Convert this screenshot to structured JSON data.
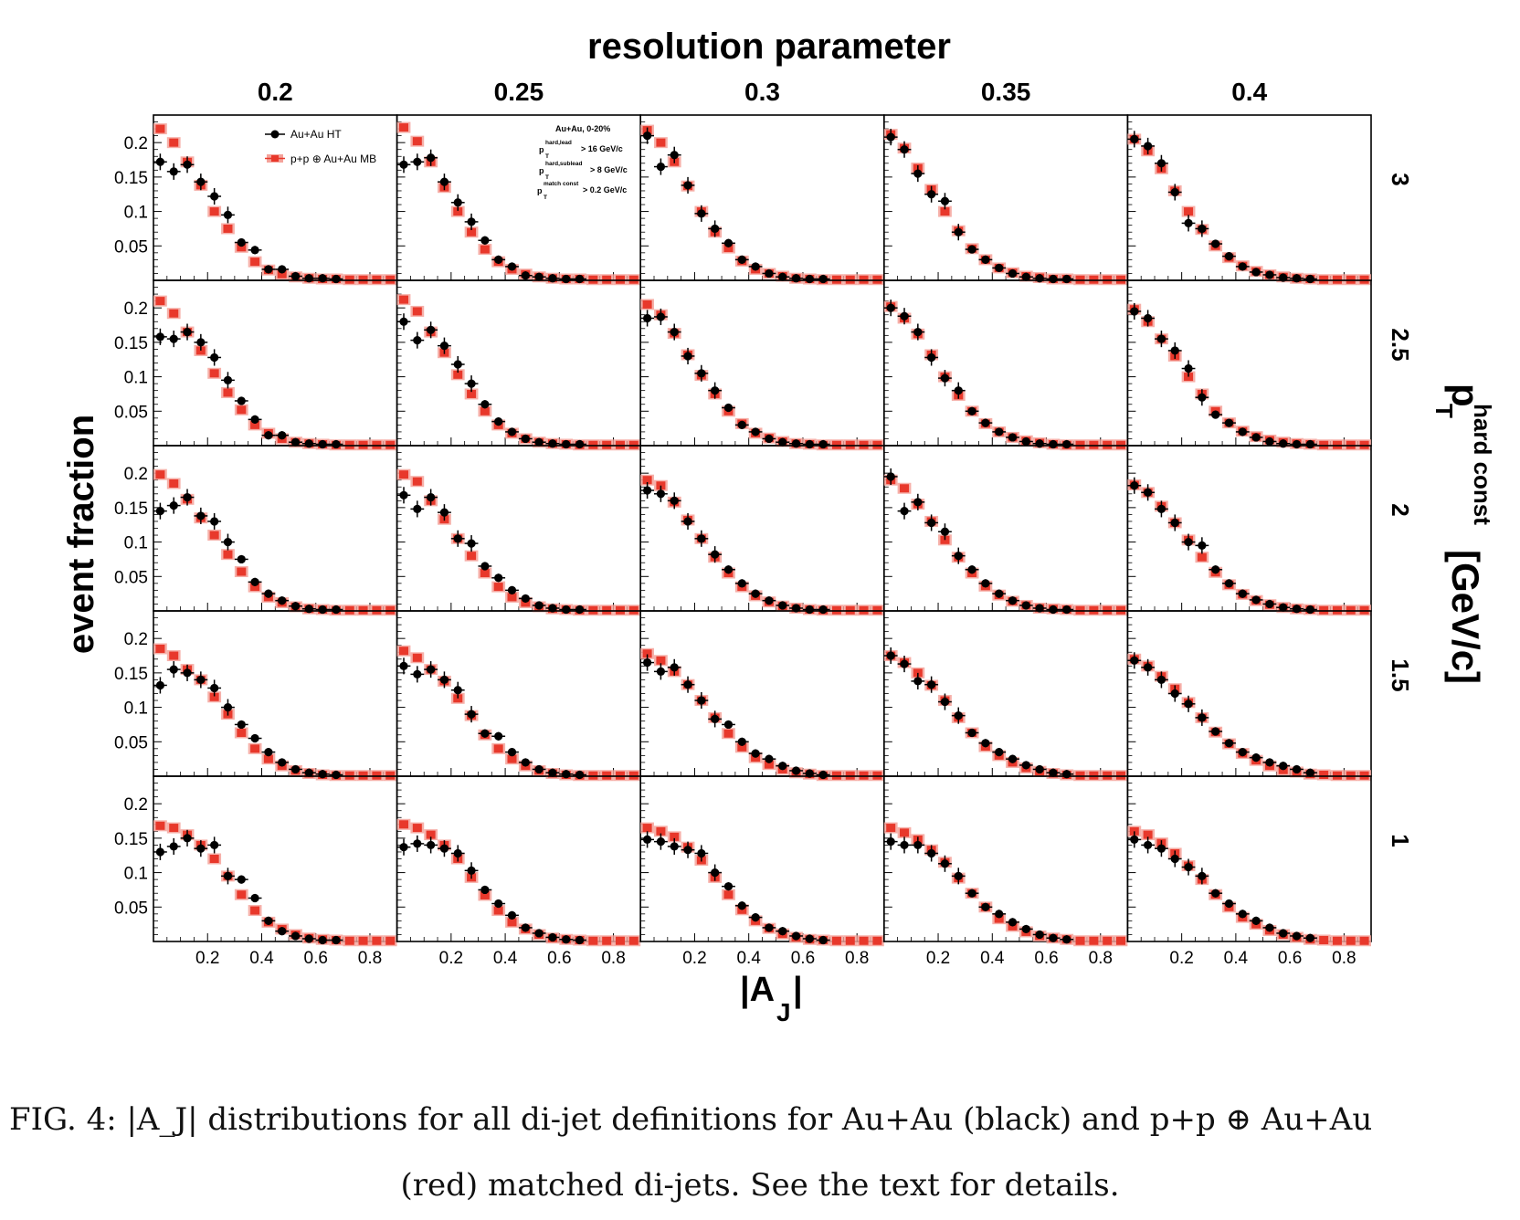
{
  "figure": {
    "top_title": "resolution parameter",
    "y_title": "event fraction",
    "x_title_main": "|A",
    "x_title_sub": "J",
    "x_title_tail": "|",
    "right_title_main": "p",
    "right_title_sup": "hard const",
    "right_title_sub": "T",
    "right_title_unit": "[GeV/c]",
    "column_labels": [
      "0.2",
      "0.25",
      "0.3",
      "0.35",
      "0.4"
    ],
    "row_labels": [
      "3",
      "2.5",
      "2",
      "1.5",
      "1"
    ],
    "legend": {
      "auau_label": "Au+Au HT",
      "pp_label": "p+p ⊕ Au+Au MB"
    },
    "cuts": {
      "line1": "Au+Au, 0-20%",
      "line2_main": "p",
      "line2_sup": "hard,lead",
      "line2_sub": "T",
      "line2_val": "> 16 GeV/c",
      "line3_main": "p",
      "line3_sup": "hard,sublead",
      "line3_sub": "T",
      "line3_val": "> 8 GeV/c",
      "line4_main": "p",
      "line4_sup": "match const",
      "line4_sub": "T",
      "line4_val": "> 0.2 GeV/c"
    },
    "y_ticks": [
      "0.2",
      "0.15",
      "0.1",
      "0.05"
    ],
    "x_ticks": [
      "0.2",
      "0.4",
      "0.6",
      "0.8"
    ],
    "colors": {
      "auau": "#000000",
      "pp": "#e8382b",
      "pp_band": "#f4a29a"
    }
  },
  "caption": {
    "line1": "FIG. 4: |A_J| distributions for all di-jet definitions for Au+Au (black) and p+p ⊕ Au+Au",
    "line2": "(red) matched di-jets. See the text for details."
  },
  "chart_data": {
    "type": "scatter",
    "x_label": "|AJ|",
    "y_label": "event fraction",
    "xlim": [
      0,
      0.9
    ],
    "ylim": [
      0,
      0.24
    ],
    "x": [
      0.025,
      0.075,
      0.125,
      0.175,
      0.225,
      0.275,
      0.325,
      0.375,
      0.425,
      0.475,
      0.525,
      0.575,
      0.625,
      0.675,
      0.725,
      0.775,
      0.825,
      0.875
    ],
    "column_parameter": "resolution parameter",
    "row_parameter": "pT hard const [GeV/c]",
    "panels": [
      {
        "R": "0.2",
        "pt": "3",
        "auau": [
          0.172,
          0.158,
          0.168,
          0.143,
          0.122,
          0.095,
          0.055,
          0.044,
          0.016,
          0.016,
          0.006,
          0.003,
          0.003,
          0.002
        ],
        "pp": [
          0.22,
          0.2,
          0.172,
          0.138,
          0.1,
          0.075,
          0.048,
          0.027,
          0.015,
          0.009,
          0.005,
          0.003,
          0.002,
          0.002,
          0.001,
          0.001,
          0.001,
          0.001
        ]
      },
      {
        "R": "0.25",
        "pt": "3",
        "auau": [
          0.168,
          0.172,
          0.178,
          0.143,
          0.113,
          0.085,
          0.058,
          0.03,
          0.02,
          0.007,
          0.005,
          0.003,
          0.002,
          0.002
        ],
        "pp": [
          0.222,
          0.202,
          0.172,
          0.135,
          0.1,
          0.07,
          0.045,
          0.027,
          0.016,
          0.009,
          0.005,
          0.003,
          0.002,
          0.002,
          0.001,
          0.001,
          0.001,
          0.001
        ]
      },
      {
        "R": "0.3",
        "pt": "3",
        "auau": [
          0.21,
          0.165,
          0.182,
          0.138,
          0.097,
          0.075,
          0.054,
          0.03,
          0.02,
          0.01,
          0.005,
          0.003,
          0.002,
          0.002
        ],
        "pp": [
          0.218,
          0.2,
          0.172,
          0.137,
          0.1,
          0.07,
          0.047,
          0.028,
          0.016,
          0.01,
          0.006,
          0.003,
          0.002,
          0.001,
          0.001,
          0.001,
          0.001,
          0.001
        ]
      },
      {
        "R": "0.35",
        "pt": "3",
        "auau": [
          0.208,
          0.19,
          0.155,
          0.125,
          0.115,
          0.07,
          0.045,
          0.03,
          0.018,
          0.01,
          0.005,
          0.003,
          0.002,
          0.002
        ],
        "pp": [
          0.212,
          0.192,
          0.163,
          0.132,
          0.1,
          0.072,
          0.046,
          0.03,
          0.018,
          0.011,
          0.006,
          0.004,
          0.002,
          0.002,
          0.001,
          0.001,
          0.001,
          0.001
        ]
      },
      {
        "R": "0.4",
        "pt": "3",
        "auau": [
          0.205,
          0.195,
          0.17,
          0.128,
          0.083,
          0.075,
          0.053,
          0.035,
          0.02,
          0.012,
          0.008,
          0.004,
          0.003,
          0.002
        ],
        "pp": [
          0.205,
          0.188,
          0.162,
          0.13,
          0.1,
          0.074,
          0.05,
          0.033,
          0.021,
          0.013,
          0.008,
          0.005,
          0.003,
          0.002,
          0.001,
          0.001,
          0.001,
          0.001
        ]
      },
      {
        "R": "0.2",
        "pt": "2.5",
        "auau": [
          0.158,
          0.155,
          0.165,
          0.15,
          0.128,
          0.095,
          0.065,
          0.038,
          0.015,
          0.015,
          0.005,
          0.003,
          0.002,
          0.002
        ],
        "pp": [
          0.21,
          0.192,
          0.165,
          0.138,
          0.105,
          0.077,
          0.052,
          0.03,
          0.018,
          0.01,
          0.005,
          0.003,
          0.002,
          0.001,
          0.001,
          0.001,
          0.001,
          0.001
        ]
      },
      {
        "R": "0.25",
        "pt": "2.5",
        "auau": [
          0.18,
          0.153,
          0.168,
          0.145,
          0.118,
          0.09,
          0.06,
          0.035,
          0.02,
          0.01,
          0.005,
          0.003,
          0.002,
          0.002
        ],
        "pp": [
          0.212,
          0.195,
          0.165,
          0.135,
          0.103,
          0.075,
          0.05,
          0.03,
          0.018,
          0.01,
          0.005,
          0.003,
          0.002,
          0.001,
          0.001,
          0.001,
          0.001,
          0.001
        ]
      },
      {
        "R": "0.3",
        "pt": "2.5",
        "auau": [
          0.185,
          0.187,
          0.165,
          0.13,
          0.105,
          0.08,
          0.055,
          0.03,
          0.02,
          0.01,
          0.005,
          0.003,
          0.002,
          0.002
        ],
        "pp": [
          0.205,
          0.19,
          0.163,
          0.132,
          0.102,
          0.075,
          0.05,
          0.032,
          0.018,
          0.011,
          0.006,
          0.003,
          0.002,
          0.001,
          0.001,
          0.001,
          0.001,
          0.001
        ]
      },
      {
        "R": "0.35",
        "pt": "2.5",
        "auau": [
          0.2,
          0.188,
          0.165,
          0.128,
          0.098,
          0.08,
          0.05,
          0.033,
          0.02,
          0.012,
          0.006,
          0.003,
          0.002,
          0.002
        ],
        "pp": [
          0.202,
          0.185,
          0.162,
          0.132,
          0.1,
          0.073,
          0.05,
          0.032,
          0.02,
          0.012,
          0.007,
          0.004,
          0.002,
          0.001,
          0.001,
          0.001,
          0.001,
          0.001
        ]
      },
      {
        "R": "0.4",
        "pt": "2.5",
        "auau": [
          0.195,
          0.185,
          0.155,
          0.138,
          0.112,
          0.07,
          0.045,
          0.033,
          0.02,
          0.012,
          0.006,
          0.003,
          0.002,
          0.002
        ],
        "pp": [
          0.198,
          0.18,
          0.155,
          0.13,
          0.1,
          0.075,
          0.05,
          0.033,
          0.021,
          0.013,
          0.008,
          0.005,
          0.003,
          0.002,
          0.001,
          0.001,
          0.001,
          0.001
        ]
      },
      {
        "R": "0.2",
        "pt": "2",
        "auau": [
          0.145,
          0.153,
          0.165,
          0.138,
          0.13,
          0.1,
          0.075,
          0.042,
          0.025,
          0.015,
          0.007,
          0.003,
          0.002,
          0.002
        ],
        "pp": [
          0.198,
          0.185,
          0.162,
          0.135,
          0.11,
          0.082,
          0.057,
          0.035,
          0.02,
          0.012,
          0.006,
          0.003,
          0.002,
          0.001,
          0.001,
          0.001,
          0.001,
          0.001
        ]
      },
      {
        "R": "0.25",
        "pt": "2",
        "auau": [
          0.168,
          0.148,
          0.165,
          0.143,
          0.105,
          0.098,
          0.065,
          0.048,
          0.03,
          0.018,
          0.008,
          0.004,
          0.002,
          0.002
        ],
        "pp": [
          0.198,
          0.188,
          0.16,
          0.133,
          0.105,
          0.08,
          0.055,
          0.035,
          0.02,
          0.012,
          0.006,
          0.003,
          0.002,
          0.001,
          0.001,
          0.001,
          0.001,
          0.001
        ]
      },
      {
        "R": "0.3",
        "pt": "2",
        "auau": [
          0.175,
          0.17,
          0.16,
          0.13,
          0.105,
          0.082,
          0.06,
          0.04,
          0.025,
          0.015,
          0.008,
          0.004,
          0.002,
          0.002
        ],
        "pp": [
          0.19,
          0.182,
          0.158,
          0.132,
          0.105,
          0.078,
          0.055,
          0.035,
          0.022,
          0.013,
          0.007,
          0.004,
          0.002,
          0.001,
          0.001,
          0.001,
          0.001,
          0.001
        ]
      },
      {
        "R": "0.35",
        "pt": "2",
        "auau": [
          0.195,
          0.145,
          0.158,
          0.128,
          0.115,
          0.08,
          0.06,
          0.04,
          0.025,
          0.015,
          0.008,
          0.004,
          0.002,
          0.002
        ],
        "pp": [
          0.19,
          0.178,
          0.155,
          0.13,
          0.103,
          0.078,
          0.055,
          0.036,
          0.023,
          0.014,
          0.008,
          0.004,
          0.003,
          0.002,
          0.001,
          0.001,
          0.001,
          0.001
        ]
      },
      {
        "R": "0.4",
        "pt": "2",
        "auau": [
          0.182,
          0.172,
          0.148,
          0.128,
          0.1,
          0.095,
          0.06,
          0.04,
          0.025,
          0.016,
          0.01,
          0.005,
          0.003,
          0.002
        ],
        "pp": [
          0.183,
          0.172,
          0.152,
          0.128,
          0.103,
          0.078,
          0.056,
          0.038,
          0.024,
          0.015,
          0.009,
          0.005,
          0.003,
          0.002,
          0.001,
          0.001,
          0.001,
          0.001
        ]
      },
      {
        "R": "0.2",
        "pt": "1.5",
        "auau": [
          0.132,
          0.155,
          0.15,
          0.14,
          0.128,
          0.1,
          0.075,
          0.055,
          0.035,
          0.02,
          0.01,
          0.005,
          0.003,
          0.002
        ],
        "pp": [
          0.185,
          0.175,
          0.155,
          0.14,
          0.115,
          0.09,
          0.063,
          0.04,
          0.025,
          0.015,
          0.008,
          0.004,
          0.002,
          0.001,
          0.001,
          0.001,
          0.001,
          0.001
        ]
      },
      {
        "R": "0.25",
        "pt": "1.5",
        "auau": [
          0.16,
          0.148,
          0.155,
          0.14,
          0.125,
          0.09,
          0.062,
          0.058,
          0.035,
          0.02,
          0.01,
          0.005,
          0.003,
          0.002
        ],
        "pp": [
          0.182,
          0.172,
          0.155,
          0.138,
          0.113,
          0.088,
          0.06,
          0.04,
          0.025,
          0.015,
          0.008,
          0.004,
          0.002,
          0.001,
          0.001,
          0.001,
          0.001,
          0.001
        ]
      },
      {
        "R": "0.3",
        "pt": "1.5",
        "auau": [
          0.165,
          0.152,
          0.158,
          0.133,
          0.11,
          0.083,
          0.075,
          0.05,
          0.033,
          0.025,
          0.015,
          0.008,
          0.004,
          0.002
        ],
        "pp": [
          0.178,
          0.168,
          0.152,
          0.133,
          0.11,
          0.085,
          0.062,
          0.042,
          0.027,
          0.017,
          0.01,
          0.005,
          0.003,
          0.001,
          0.001,
          0.001,
          0.001,
          0.001
        ]
      },
      {
        "R": "0.35",
        "pt": "1.5",
        "auau": [
          0.175,
          0.163,
          0.138,
          0.133,
          0.108,
          0.088,
          0.063,
          0.048,
          0.035,
          0.025,
          0.016,
          0.01,
          0.005,
          0.003
        ],
        "pp": [
          0.175,
          0.165,
          0.15,
          0.132,
          0.11,
          0.085,
          0.063,
          0.043,
          0.03,
          0.02,
          0.012,
          0.007,
          0.004,
          0.002,
          0.001,
          0.001,
          0.001,
          0.001
        ]
      },
      {
        "R": "0.4",
        "pt": "1.5",
        "auau": [
          0.168,
          0.158,
          0.14,
          0.12,
          0.105,
          0.085,
          0.065,
          0.048,
          0.035,
          0.027,
          0.02,
          0.015,
          0.01,
          0.005
        ],
        "pp": [
          0.17,
          0.16,
          0.145,
          0.127,
          0.107,
          0.085,
          0.064,
          0.047,
          0.033,
          0.023,
          0.015,
          0.009,
          0.006,
          0.003,
          0.002,
          0.001,
          0.001,
          0.001
        ]
      },
      {
        "R": "0.2",
        "pt": "1",
        "auau": [
          0.13,
          0.138,
          0.15,
          0.135,
          0.14,
          0.095,
          0.09,
          0.063,
          0.03,
          0.015,
          0.008,
          0.004,
          0.002,
          0.002
        ],
        "pp": [
          0.168,
          0.165,
          0.155,
          0.14,
          0.12,
          0.095,
          0.068,
          0.045,
          0.028,
          0.018,
          0.01,
          0.005,
          0.003,
          0.002,
          0.001,
          0.001,
          0.001,
          0.001
        ]
      },
      {
        "R": "0.25",
        "pt": "1",
        "auau": [
          0.137,
          0.142,
          0.14,
          0.135,
          0.128,
          0.103,
          0.075,
          0.055,
          0.038,
          0.02,
          0.012,
          0.006,
          0.003,
          0.002
        ],
        "pp": [
          0.17,
          0.165,
          0.155,
          0.14,
          0.12,
          0.093,
          0.067,
          0.045,
          0.028,
          0.018,
          0.01,
          0.005,
          0.003,
          0.002,
          0.001,
          0.001,
          0.001,
          0.001
        ]
      },
      {
        "R": "0.3",
        "pt": "1",
        "auau": [
          0.148,
          0.145,
          0.138,
          0.133,
          0.128,
          0.1,
          0.08,
          0.052,
          0.035,
          0.02,
          0.015,
          0.008,
          0.004,
          0.002
        ],
        "pp": [
          0.165,
          0.16,
          0.152,
          0.137,
          0.118,
          0.093,
          0.068,
          0.046,
          0.03,
          0.019,
          0.011,
          0.006,
          0.003,
          0.002,
          0.001,
          0.001,
          0.001,
          0.001
        ]
      },
      {
        "R": "0.35",
        "pt": "1",
        "auau": [
          0.145,
          0.14,
          0.14,
          0.128,
          0.113,
          0.095,
          0.07,
          0.05,
          0.04,
          0.028,
          0.018,
          0.01,
          0.005,
          0.003
        ],
        "pp": [
          0.165,
          0.158,
          0.148,
          0.133,
          0.115,
          0.092,
          0.07,
          0.05,
          0.033,
          0.022,
          0.014,
          0.008,
          0.005,
          0.003,
          0.001,
          0.001,
          0.001,
          0.001
        ]
      },
      {
        "R": "0.4",
        "pt": "1",
        "auau": [
          0.148,
          0.14,
          0.135,
          0.12,
          0.108,
          0.095,
          0.07,
          0.055,
          0.04,
          0.03,
          0.02,
          0.012,
          0.008,
          0.005
        ],
        "pp": [
          0.16,
          0.155,
          0.143,
          0.128,
          0.11,
          0.09,
          0.068,
          0.05,
          0.035,
          0.025,
          0.016,
          0.01,
          0.006,
          0.003,
          0.002,
          0.001,
          0.001,
          0.001
        ]
      }
    ]
  }
}
